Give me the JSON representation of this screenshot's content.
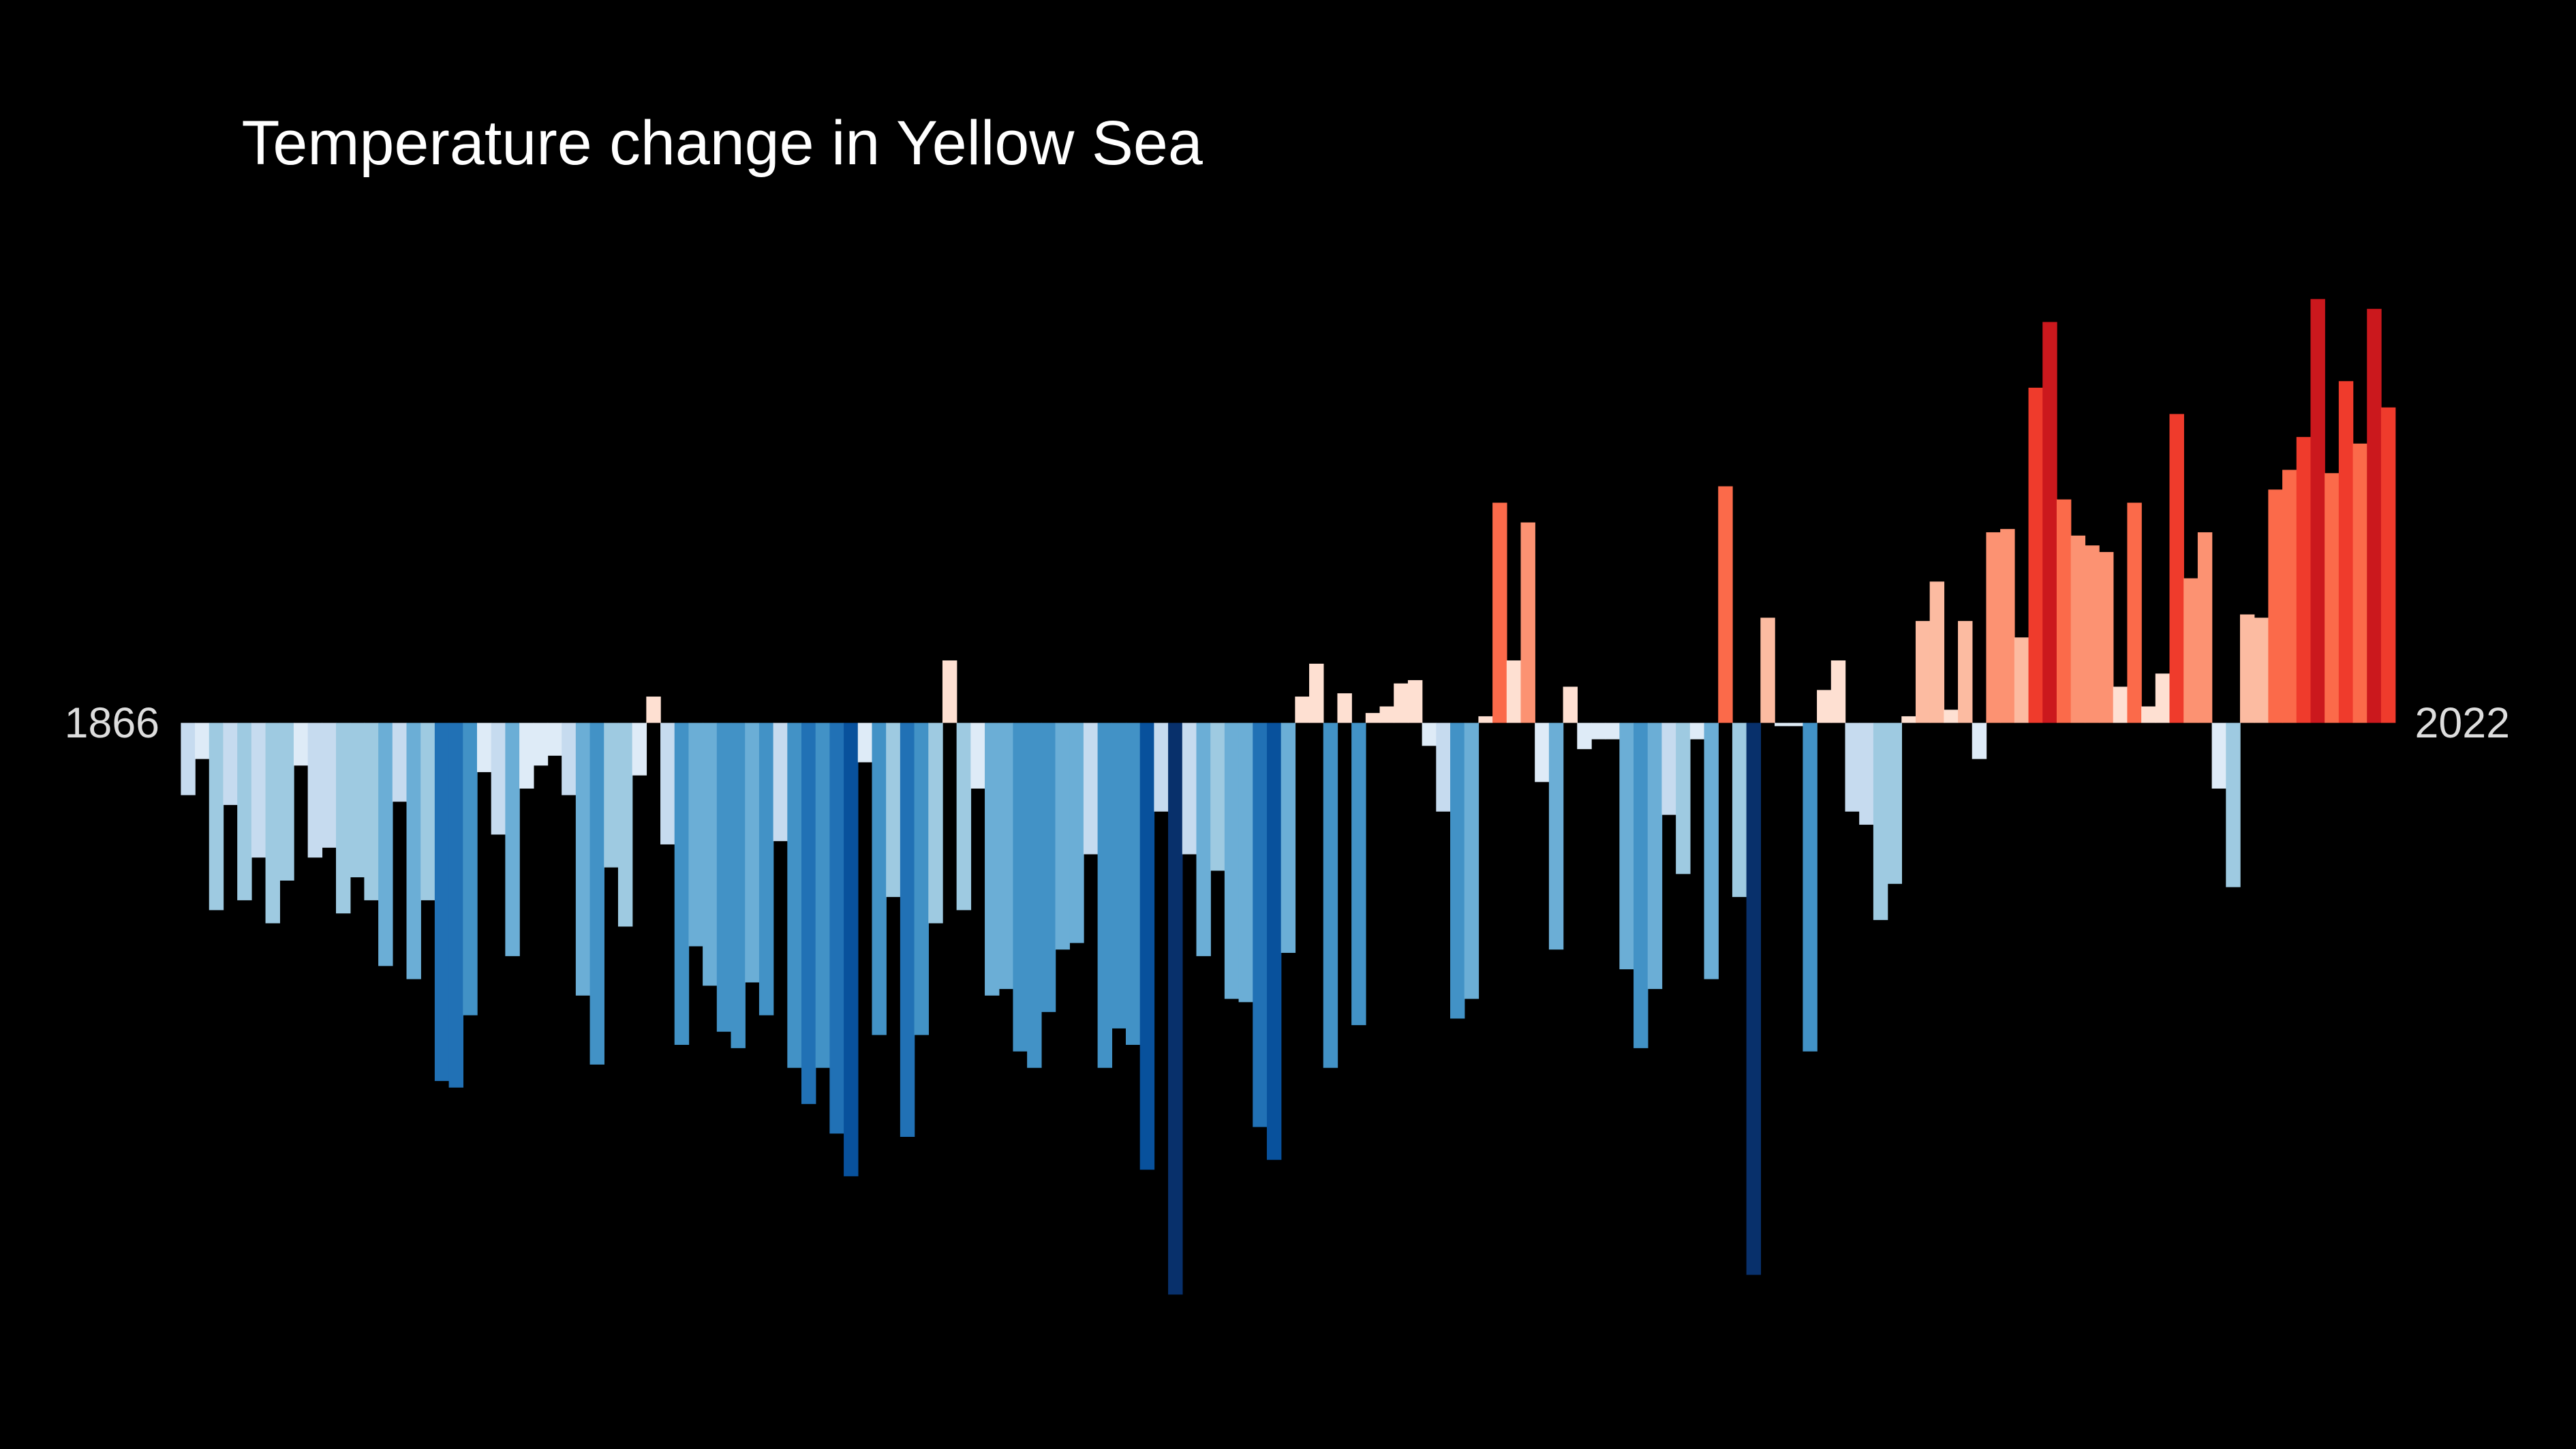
{
  "chart_data": {
    "type": "bar",
    "title": "Temperature change in Yellow Sea",
    "categories": [
      "1866",
      null,
      null,
      null,
      null,
      null,
      null,
      null,
      null,
      null,
      null,
      null,
      null,
      null,
      null,
      null,
      null,
      null,
      null,
      null,
      null,
      null,
      null,
      null,
      null,
      null,
      null,
      null,
      null,
      null,
      null,
      null,
      null,
      null,
      null,
      null,
      null,
      null,
      null,
      null,
      null,
      null,
      null,
      null,
      null,
      null,
      null,
      null,
      null,
      null,
      null,
      null,
      null,
      null,
      null,
      null,
      null,
      null,
      null,
      null,
      null,
      null,
      null,
      null,
      null,
      null,
      null,
      null,
      null,
      null,
      null,
      null,
      null,
      null,
      null,
      null,
      null,
      null,
      null,
      null,
      null,
      null,
      null,
      null,
      null,
      null,
      null,
      null,
      null,
      null,
      null,
      null,
      null,
      null,
      null,
      null,
      null,
      null,
      null,
      null,
      null,
      null,
      null,
      null,
      null,
      null,
      null,
      null,
      null,
      null,
      null,
      null,
      null,
      null,
      null,
      null,
      null,
      null,
      null,
      null,
      null,
      null,
      null,
      null,
      null,
      null,
      null,
      null,
      null,
      null,
      null,
      null,
      null,
      null,
      null,
      null,
      null,
      null,
      null,
      null,
      null,
      null,
      null,
      null,
      null,
      null,
      null,
      null,
      null,
      null,
      null,
      null,
      null,
      null,
      null,
      null,
      "2022"
    ],
    "values": [
      -0.22,
      -0.11,
      -0.57,
      -0.25,
      -0.54,
      -0.41,
      -0.61,
      -0.48,
      -0.13,
      -0.41,
      -0.38,
      -0.58,
      -0.47,
      -0.54,
      -0.74,
      -0.24,
      -0.78,
      -0.54,
      -1.09,
      -1.11,
      -0.89,
      -0.15,
      -0.34,
      -0.71,
      -0.2,
      -0.13,
      -0.1,
      -0.22,
      -0.83,
      -1.04,
      -0.44,
      -0.62,
      -0.16,
      0.08,
      -0.37,
      -0.98,
      -0.68,
      -0.8,
      -0.94,
      -0.99,
      -0.79,
      -0.89,
      -0.36,
      -1.05,
      -1.16,
      -1.05,
      -1.25,
      -1.38,
      -0.12,
      -0.95,
      -0.53,
      -1.26,
      -0.95,
      -0.61,
      0.19,
      -0.57,
      -0.2,
      -0.83,
      -0.81,
      -1.0,
      -1.05,
      -0.88,
      -0.69,
      -0.67,
      -0.4,
      -1.05,
      -0.93,
      -0.98,
      -1.36,
      -0.27,
      -1.74,
      -0.4,
      -0.71,
      -0.45,
      -0.84,
      -0.85,
      -1.23,
      -1.33,
      -0.7,
      0.08,
      0.18,
      -1.05,
      0.09,
      -0.92,
      0.03,
      0.05,
      0.12,
      0.13,
      -0.07,
      -0.27,
      -0.9,
      -0.84,
      0.02,
      0.67,
      0.19,
      0.61,
      -0.18,
      -0.69,
      0.11,
      -0.08,
      -0.05,
      -0.05,
      -0.75,
      -0.99,
      -0.81,
      -0.28,
      -0.46,
      -0.05,
      -0.78,
      0.72,
      -0.53,
      -1.68,
      0.32,
      -0.01,
      -0.01,
      -1.0,
      0.1,
      0.19,
      -0.27,
      -0.31,
      -0.6,
      -0.49,
      0.02,
      0.31,
      0.43,
      0.04,
      0.31,
      -0.11,
      0.58,
      0.59,
      0.26,
      1.02,
      1.22,
      0.68,
      0.57,
      0.54,
      0.52,
      0.11,
      0.67,
      0.05,
      0.15,
      0.94,
      0.44,
      0.58,
      -0.2,
      -0.5,
      0.33,
      0.32,
      0.71,
      0.77,
      0.87,
      1.29,
      0.76,
      1.04,
      0.85,
      1.26,
      0.96
    ],
    "ylim": [
      -2.21,
      2.2
    ]
  }
}
